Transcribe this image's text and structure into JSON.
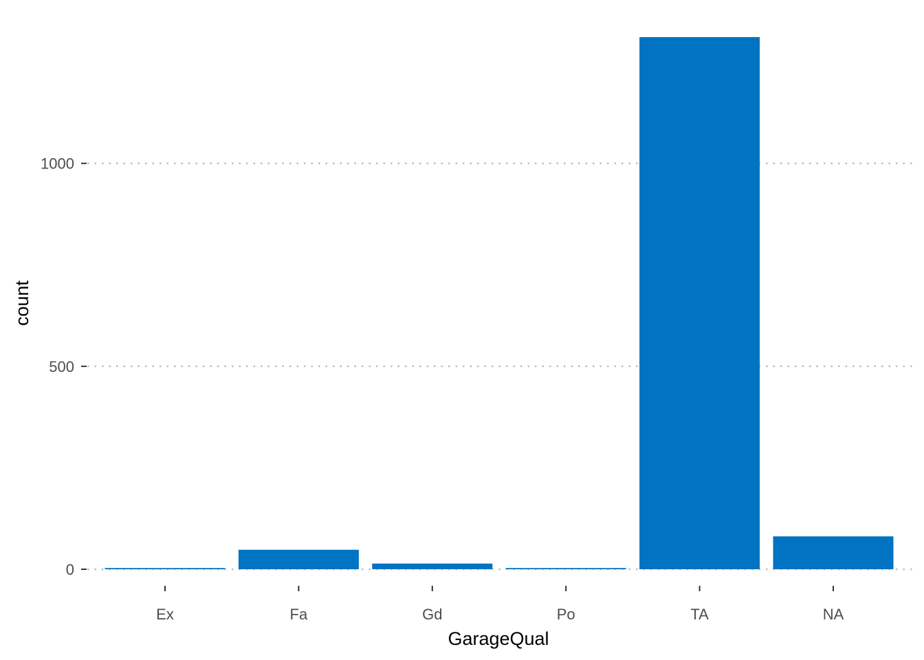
{
  "chart_data": {
    "type": "bar",
    "title": "",
    "xlabel": "GarageQual",
    "ylabel": "count",
    "categories": [
      "Ex",
      "Fa",
      "Gd",
      "Po",
      "TA",
      "NA"
    ],
    "values": [
      3,
      48,
      14,
      3,
      1311,
      81
    ],
    "ylim": [
      0,
      1311
    ],
    "yticks": [
      0,
      500,
      1000
    ],
    "grid": "horizontal dotted at y ticks",
    "legend": "none",
    "colors": {
      "bar": "#0073C2",
      "grid": "#BEBEBE",
      "tick": "#333333",
      "tick_label": "#4D4D4D",
      "axis_title": "#000000"
    }
  }
}
